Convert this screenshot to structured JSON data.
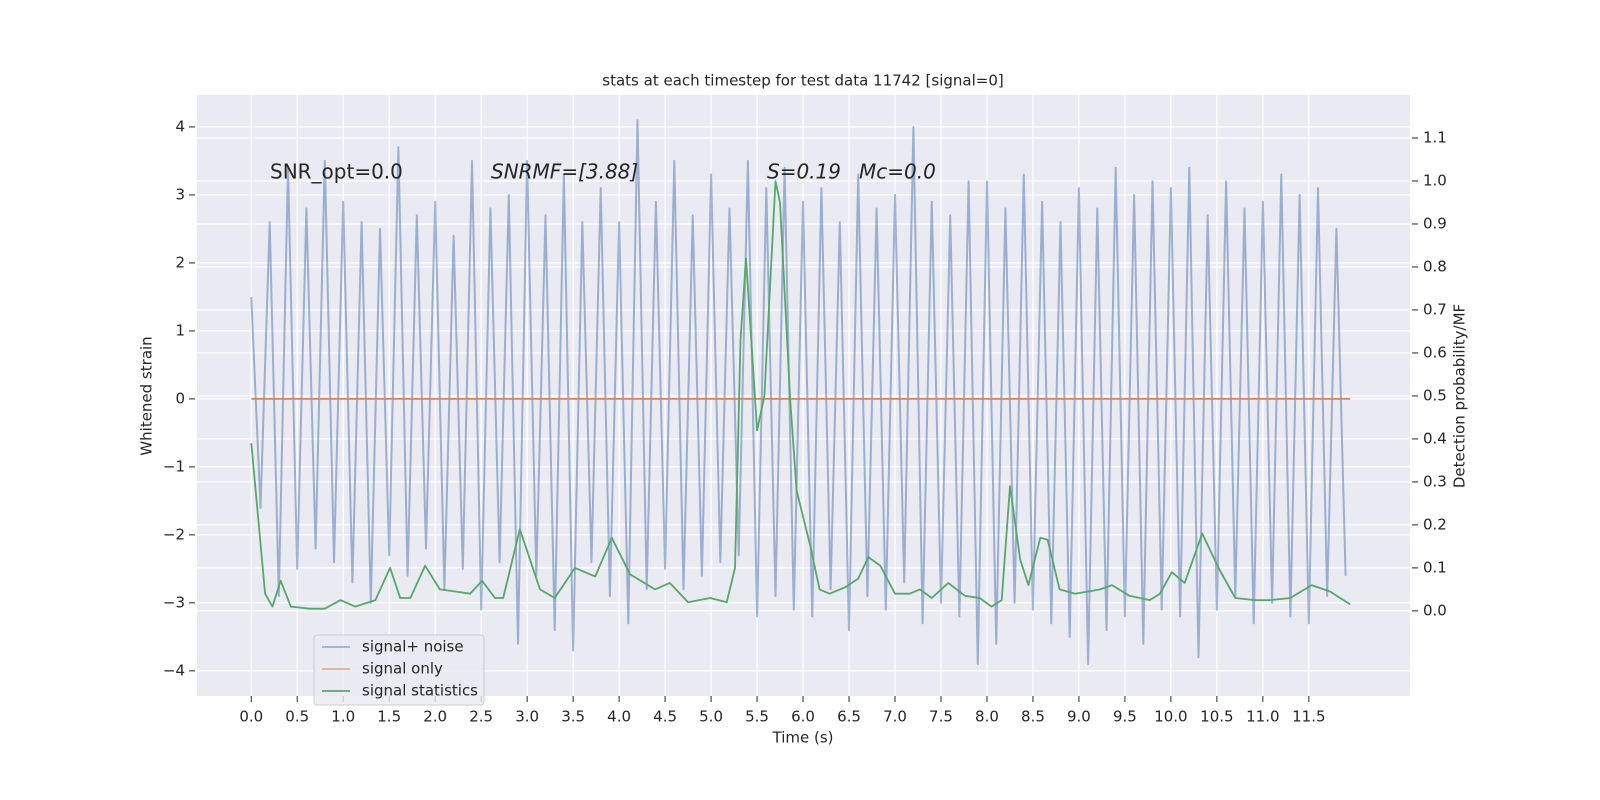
{
  "chart_data": {
    "type": "line",
    "title": "stats at each timestep for test data 11742 [signal=0]",
    "xlabel": "Time (s)",
    "ylabel": "Whitened strain",
    "y2label": "Detection probability/MF",
    "annotations": [
      "SNR_opt=0.0",
      "SNRMF=[3.88]",
      "S=0.19",
      "Mc=0.0"
    ],
    "xlim": [
      -0.59,
      12.6
    ],
    "ylim": [
      -4.37,
      4.47
    ],
    "y2lim": [
      -0.198,
      1.2
    ],
    "xticks": [
      {
        "value": 0,
        "label": "0.0"
      },
      0.5,
      {
        "value": 1,
        "label": "1.0"
      },
      1.5,
      {
        "value": 2,
        "label": "2.0"
      },
      2.5,
      {
        "value": 3,
        "label": "3.0"
      },
      3.5,
      {
        "value": 4,
        "label": "4.0"
      },
      4.5,
      {
        "value": 5,
        "label": "5.0"
      },
      5.5,
      {
        "value": 6,
        "label": "6.0"
      },
      6.5,
      {
        "value": 7,
        "label": "7.0"
      },
      7.5,
      {
        "value": 8,
        "label": "8.0"
      },
      8.5,
      {
        "value": 9,
        "label": "9.0"
      },
      9.5,
      {
        "value": 10,
        "label": "10.0"
      },
      10.5,
      {
        "value": 11,
        "label": "11.0"
      },
      11.5
    ],
    "yticks": [
      {
        "value": -4,
        "label": "−4"
      },
      {
        "value": -3,
        "label": "−3"
      },
      {
        "value": -2,
        "label": "−2"
      },
      {
        "value": -1,
        "label": "−1"
      },
      0,
      1,
      2,
      3,
      4
    ],
    "y2ticks": [
      {
        "value": 0,
        "label": "0.0"
      },
      0.1,
      0.2,
      0.3,
      0.4,
      0.5,
      0.6,
      0.7,
      0.8,
      0.9,
      {
        "value": 1,
        "label": "1.0"
      },
      1.1
    ],
    "grid": true,
    "legend": "lower left",
    "series": [
      {
        "name": "signal+ noise",
        "color": "#4c72b0",
        "axis": "y",
        "x": [
          0,
          0.1,
          0.2,
          0.3,
          0.4,
          0.5,
          0.6,
          0.7,
          0.8,
          0.9,
          1,
          1.1,
          1.2,
          1.3,
          1.4,
          1.5,
          1.6,
          1.7,
          1.8,
          1.9,
          2,
          2.1,
          2.2,
          2.3,
          2.4,
          2.5,
          2.6,
          2.7,
          2.8,
          2.9,
          3,
          3.1,
          3.2,
          3.3,
          3.4,
          3.5,
          3.6,
          3.7,
          3.8,
          3.9,
          4,
          4.1,
          4.2,
          4.3,
          4.4,
          4.5,
          4.6,
          4.7,
          4.8,
          4.9,
          5,
          5.1,
          5.2,
          5.3,
          5.4,
          5.5,
          5.6,
          5.7,
          5.8,
          5.9,
          6,
          6.1,
          6.2,
          6.3,
          6.4,
          6.5,
          6.6,
          6.7,
          6.8,
          6.9,
          7,
          7.1,
          7.2,
          7.3,
          7.4,
          7.5,
          7.6,
          7.7,
          7.8,
          7.9,
          8,
          8.1,
          8.2,
          8.3,
          8.4,
          8.5,
          8.6,
          8.7,
          8.8,
          8.9,
          9,
          9.1,
          9.2,
          9.3,
          9.4,
          9.5,
          9.6,
          9.7,
          9.8,
          9.9,
          10,
          10.1,
          10.2,
          10.3,
          10.4,
          10.5,
          10.6,
          10.7,
          10.8,
          10.9,
          11,
          11.1,
          11.2,
          11.3,
          11.4,
          11.5,
          11.6,
          11.7,
          11.8,
          11.9
        ],
        "values": [
          1.5,
          -1.6,
          2.6,
          -2.9,
          3.4,
          -2.5,
          2.8,
          -2.2,
          3.5,
          -2.4,
          2.9,
          -2.7,
          2.6,
          -3.0,
          2.5,
          -2.3,
          3.7,
          -2.6,
          2.7,
          -2.2,
          2.9,
          -2.8,
          2.4,
          -2.5,
          3.5,
          -3.1,
          2.8,
          -2.4,
          3.0,
          -3.6,
          3.5,
          -2.6,
          2.7,
          -3.4,
          3.3,
          -3.7,
          2.6,
          -2.4,
          3.1,
          -2.9,
          2.6,
          -3.3,
          4.1,
          -2.8,
          2.9,
          -2.5,
          3.5,
          -2.8,
          2.7,
          -2.6,
          3.3,
          -2.4,
          2.8,
          -2.3,
          3.5,
          -3.2,
          3.1,
          -2.9,
          3.4,
          -3.1,
          2.9,
          -3.2,
          3.1,
          -2.8,
          2.6,
          -3.4,
          3.3,
          -2.9,
          2.8,
          -3.1,
          3.0,
          -2.7,
          4.0,
          -3.3,
          2.9,
          -3.0,
          2.7,
          -3.2,
          3.2,
          -3.9,
          3.2,
          -3.6,
          2.8,
          -3.0,
          3.3,
          -3.1,
          2.9,
          -3.3,
          2.6,
          -3.5,
          3.1,
          -3.9,
          2.8,
          -3.4,
          3.4,
          -3.2,
          3.0,
          -3.6,
          3.2,
          -3.1,
          3.1,
          -3.2,
          3.4,
          -3.8,
          2.7,
          -3.1,
          3.2,
          -2.9,
          2.8,
          -3.3,
          2.9,
          -3.0,
          3.3,
          -3.2,
          3.0,
          -3.3,
          3.1,
          -2.9,
          2.5,
          -2.6
        ]
      },
      {
        "name": "signal only",
        "color": "#dd8452",
        "axis": "y",
        "x": [
          0,
          11.95
        ],
        "values": [
          0,
          0
        ]
      },
      {
        "name": "signal statistics",
        "color": "#55a868",
        "axis": "y2",
        "x": [
          0,
          0.15,
          0.23,
          0.32,
          0.43,
          0.64,
          0.8,
          0.97,
          1.13,
          1.35,
          1.51,
          1.62,
          1.73,
          1.89,
          2.05,
          2.22,
          2.38,
          2.51,
          2.65,
          2.74,
          2.92,
          3.14,
          3.3,
          3.52,
          3.74,
          3.92,
          4.12,
          4.39,
          4.55,
          4.75,
          4.99,
          5.17,
          5.26,
          5.32,
          5.38,
          5.5,
          5.58,
          5.7,
          5.75,
          5.86,
          5.93,
          6.08,
          6.18,
          6.29,
          6.46,
          6.6,
          6.71,
          6.84,
          7.0,
          7.16,
          7.27,
          7.4,
          7.58,
          7.76,
          7.92,
          8.05,
          8.16,
          8.25,
          8.36,
          8.45,
          8.58,
          8.66,
          8.79,
          8.96,
          9.23,
          9.36,
          9.55,
          9.77,
          9.88,
          10.01,
          10.15,
          10.34,
          10.53,
          10.7,
          10.91,
          11.08,
          11.3,
          11.53,
          11.73,
          11.95
        ],
        "values": [
          0.39,
          0.04,
          0.01,
          0.07,
          0.01,
          0.005,
          0.005,
          0.025,
          0.01,
          0.025,
          0.1,
          0.03,
          0.03,
          0.105,
          0.05,
          0.045,
          0.04,
          0.07,
          0.03,
          0.03,
          0.19,
          0.05,
          0.03,
          0.1,
          0.08,
          0.17,
          0.085,
          0.05,
          0.065,
          0.02,
          0.03,
          0.02,
          0.1,
          0.63,
          0.82,
          0.42,
          0.5,
          1.0,
          0.95,
          0.49,
          0.28,
          0.15,
          0.05,
          0.04,
          0.055,
          0.075,
          0.125,
          0.105,
          0.04,
          0.04,
          0.05,
          0.03,
          0.065,
          0.035,
          0.03,
          0.01,
          0.025,
          0.29,
          0.12,
          0.06,
          0.17,
          0.165,
          0.05,
          0.04,
          0.05,
          0.06,
          0.035,
          0.025,
          0.04,
          0.09,
          0.065,
          0.18,
          0.095,
          0.03,
          0.025,
          0.025,
          0.03,
          0.06,
          0.045,
          0.015
        ]
      }
    ]
  }
}
